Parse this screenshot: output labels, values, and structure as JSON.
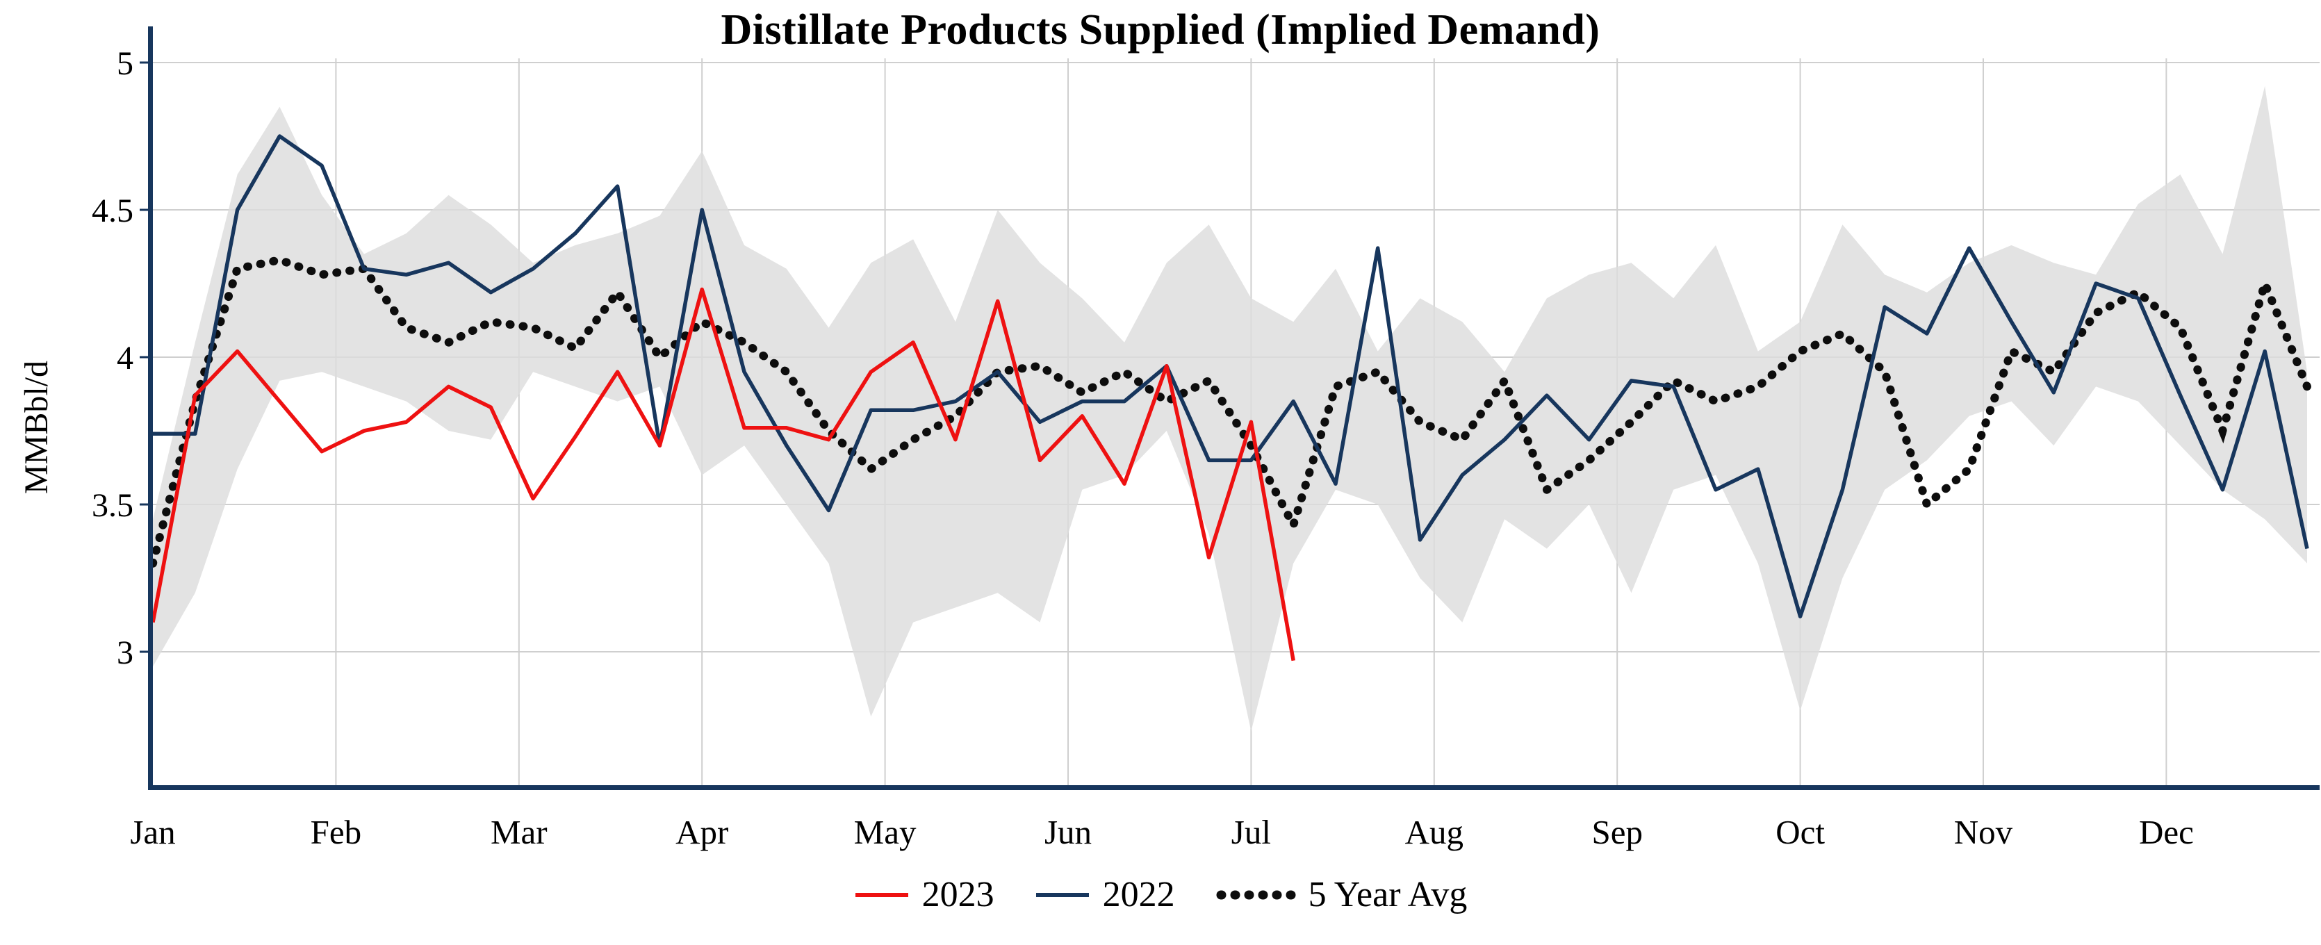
{
  "title": "Distillate Products Supplied (Implied Demand)",
  "y_axis": {
    "label": "MMBbl/d",
    "tick_labels": [
      "5",
      "4.5",
      "4",
      "3.5",
      "3"
    ]
  },
  "x_axis": {
    "tick_labels": [
      "Jan",
      "Feb",
      "Mar",
      "Apr",
      "May",
      "Jun",
      "Jul",
      "Aug",
      "Sep",
      "Oct",
      "Nov",
      "Dec"
    ]
  },
  "legend": {
    "items": [
      {
        "label": "2023",
        "color": "#ee1111",
        "style": "solid"
      },
      {
        "label": "2022",
        "color": "#17365d",
        "style": "solid"
      },
      {
        "label": "5 Year Avg",
        "color": "#0d0d0d",
        "style": "dotted"
      }
    ]
  },
  "colors": {
    "axis": "#17365d",
    "grid": "#cfcfcf",
    "band": "#dcdcdc",
    "series_2023": "#ee1111",
    "series_2022": "#17365d",
    "series_avg": "#0d0d0d"
  },
  "chart_data": {
    "type": "line",
    "title": "Distillate Products Supplied (Implied Demand)",
    "xlabel": "",
    "ylabel": "MMBbl/d",
    "ylim": [
      2.55,
      5.0
    ],
    "yticks": [
      5,
      4.5,
      4,
      3.5,
      3
    ],
    "grid": true,
    "legend_position": "bottom-center",
    "x_unit": "weekly observations, Jan through Dec (52 weeks)",
    "weeks": 52,
    "months": [
      "Jan",
      "Feb",
      "Mar",
      "Apr",
      "May",
      "Jun",
      "Jul",
      "Aug",
      "Sep",
      "Oct",
      "Nov",
      "Dec"
    ],
    "series": [
      {
        "name": "2023",
        "style": "solid",
        "color": "#ee1111",
        "note": "ends in early July",
        "values": [
          3.1,
          3.87,
          4.02,
          3.85,
          3.68,
          3.75,
          3.78,
          3.9,
          3.83,
          3.52,
          3.73,
          3.95,
          3.7,
          4.23,
          3.76,
          3.76,
          3.72,
          3.95,
          4.05,
          3.72,
          4.19,
          3.65,
          3.8,
          3.57,
          3.97,
          3.32,
          3.78,
          2.97,
          null,
          null,
          null,
          null,
          null,
          null,
          null,
          null,
          null,
          null,
          null,
          null,
          null,
          null,
          null,
          null,
          null,
          null,
          null,
          null,
          null,
          null,
          null,
          null
        ]
      },
      {
        "name": "2022",
        "style": "solid",
        "color": "#17365d",
        "values": [
          3.74,
          3.74,
          4.5,
          4.75,
          4.65,
          4.3,
          4.28,
          4.32,
          4.22,
          4.3,
          4.42,
          4.58,
          3.7,
          4.5,
          3.95,
          3.7,
          3.48,
          3.82,
          3.82,
          3.85,
          3.95,
          3.78,
          3.85,
          3.85,
          3.97,
          3.65,
          3.65,
          3.85,
          3.57,
          4.37,
          3.38,
          3.6,
          3.72,
          3.87,
          3.72,
          3.92,
          3.9,
          3.55,
          3.62,
          3.12,
          3.55,
          4.17,
          4.08,
          4.37,
          4.12,
          3.88,
          4.25,
          4.2,
          3.87,
          3.55,
          4.02,
          3.35
        ]
      },
      {
        "name": "5 Year Avg",
        "style": "dotted",
        "color": "#0d0d0d",
        "values": [
          3.3,
          3.85,
          4.3,
          4.33,
          4.28,
          4.3,
          4.1,
          4.05,
          4.12,
          4.1,
          4.03,
          4.22,
          4.0,
          4.12,
          4.05,
          3.95,
          3.75,
          3.62,
          3.72,
          3.8,
          3.95,
          3.97,
          3.88,
          3.95,
          3.85,
          3.92,
          3.7,
          3.43,
          3.9,
          3.95,
          3.78,
          3.72,
          3.92,
          3.55,
          3.65,
          3.78,
          3.92,
          3.85,
          3.9,
          4.02,
          4.08,
          3.95,
          3.5,
          3.62,
          4.02,
          3.95,
          4.15,
          4.22,
          4.1,
          3.75,
          4.25,
          3.9
        ]
      },
      {
        "name": "5 Year Range",
        "type": "band",
        "color": "#dcdcdc",
        "upper": [
          3.45,
          4.05,
          4.62,
          4.85,
          4.55,
          4.35,
          4.42,
          4.55,
          4.45,
          4.32,
          4.38,
          4.42,
          4.48,
          4.7,
          4.38,
          4.3,
          4.1,
          4.32,
          4.4,
          4.12,
          4.5,
          4.32,
          4.2,
          4.05,
          4.32,
          4.45,
          4.2,
          4.12,
          4.3,
          4.02,
          4.2,
          4.12,
          3.95,
          4.2,
          4.28,
          4.32,
          4.2,
          4.38,
          4.02,
          4.12,
          4.45,
          4.28,
          4.22,
          4.32,
          4.38,
          4.32,
          4.28,
          4.52,
          4.62,
          4.35,
          4.92,
          3.95
        ],
        "lower": [
          2.95,
          3.2,
          3.62,
          3.92,
          3.95,
          3.9,
          3.85,
          3.75,
          3.72,
          3.95,
          3.9,
          3.85,
          3.9,
          3.6,
          3.7,
          3.5,
          3.3,
          2.78,
          3.1,
          3.15,
          3.2,
          3.1,
          3.55,
          3.6,
          3.75,
          3.4,
          2.73,
          3.3,
          3.55,
          3.5,
          3.25,
          3.1,
          3.45,
          3.35,
          3.5,
          3.2,
          3.55,
          3.6,
          3.3,
          2.8,
          3.25,
          3.55,
          3.65,
          3.8,
          3.85,
          3.7,
          3.9,
          3.85,
          3.7,
          3.55,
          3.45,
          3.3
        ]
      }
    ]
  }
}
